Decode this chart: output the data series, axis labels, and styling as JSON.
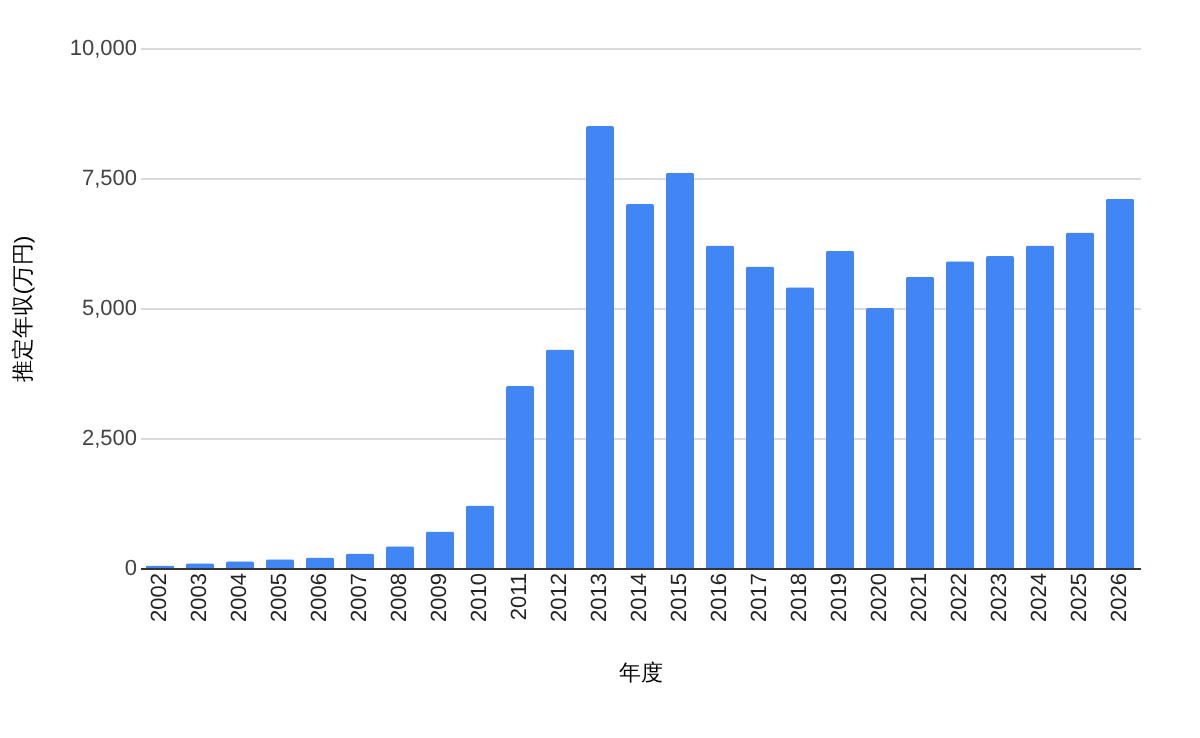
{
  "chart_data": {
    "type": "bar",
    "xlabel": "年度",
    "ylabel": "推定年収(万円)",
    "categories": [
      "2002",
      "2003",
      "2004",
      "2005",
      "2006",
      "2007",
      "2008",
      "2009",
      "2010",
      "2011",
      "2012",
      "2013",
      "2014",
      "2015",
      "2016",
      "2017",
      "2018",
      "2019",
      "2020",
      "2021",
      "2022",
      "2023",
      "2024",
      "2025",
      "2026"
    ],
    "values": [
      50,
      90,
      130,
      170,
      200,
      280,
      420,
      700,
      1200,
      3500,
      4200,
      8500,
      7000,
      7600,
      6200,
      5800,
      5400,
      6100,
      5000,
      5600,
      5900,
      6000,
      6200,
      6450,
      7100
    ],
    "color": "#4285f4",
    "ylim": [
      0,
      10000
    ],
    "yticks": [
      {
        "value": 0,
        "label": "0"
      },
      {
        "value": 2500,
        "label": "2,500"
      },
      {
        "value": 5000,
        "label": "5,000"
      },
      {
        "value": 7500,
        "label": "7,500"
      },
      {
        "value": 10000,
        "label": "10,000"
      }
    ],
    "grid": "y"
  }
}
